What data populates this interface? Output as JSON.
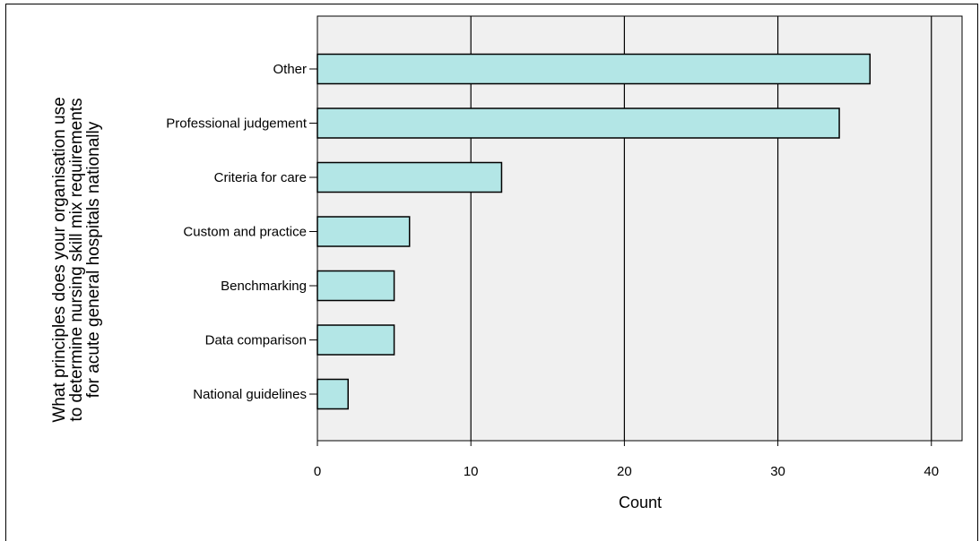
{
  "chart_data": {
    "type": "bar",
    "orientation": "horizontal",
    "title": "",
    "categories": [
      "Other",
      "Professional judgement",
      "Criteria for care",
      "Custom and practice",
      "Benchmarking",
      "Data comparison",
      "National guidelines"
    ],
    "values": [
      36,
      34,
      12,
      6,
      5,
      5,
      2
    ],
    "xlabel": "Count",
    "ylabel_lines": [
      "What principles does your organisation use",
      "to determine nursing skill mix requirements",
      "for acute general hospitals nationally"
    ],
    "xlim": [
      0,
      42
    ],
    "xticks": [
      "0",
      "10",
      "20",
      "30",
      "40"
    ],
    "grid": "vertical",
    "colors": {
      "bar_fill": "#b3e6e6",
      "bar_stroke": "#000000",
      "plot_bg": "#f0f0f0"
    }
  }
}
